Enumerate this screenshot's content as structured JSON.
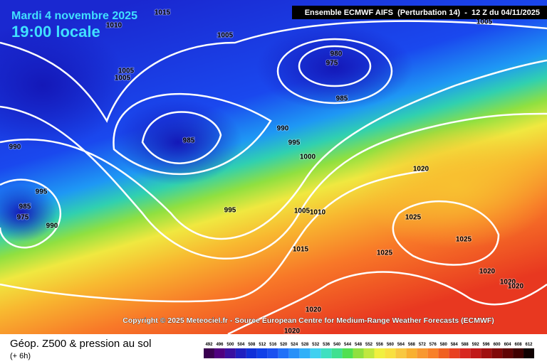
{
  "header": {
    "date": "Mardi 4 novembre 2025",
    "time": "19:00 locale",
    "model": "Ensemble ECMWF AIFS  (Perturbation 14)  -  12 Z du 04/11/2025"
  },
  "map": {
    "isobar_labels": [
      1015,
      1010,
      1005,
      1005,
      1005,
      1005,
      980,
      975,
      985,
      990,
      985,
      995,
      1000,
      990,
      1020,
      995,
      985,
      975,
      990,
      995,
      1005,
      1010,
      1025,
      1025,
      1015,
      1025,
      1020,
      1020,
      1020,
      1020,
      1020
    ]
  },
  "copyright": "Copyright © 2025 Meteociel.fr - Source European Centre for Medium-Range Weather Forecasts (ECMWF)",
  "legend": {
    "title": "Géop. Z500 & pression au sol",
    "subtitle": "(+ 6h)",
    "scale_labels": [
      492,
      496,
      500,
      504,
      508,
      512,
      516,
      520,
      524,
      528,
      532,
      536,
      540,
      544,
      548,
      552,
      556,
      560,
      564,
      568,
      572,
      576,
      580,
      584,
      588,
      592,
      596,
      600,
      604,
      608,
      612
    ]
  }
}
